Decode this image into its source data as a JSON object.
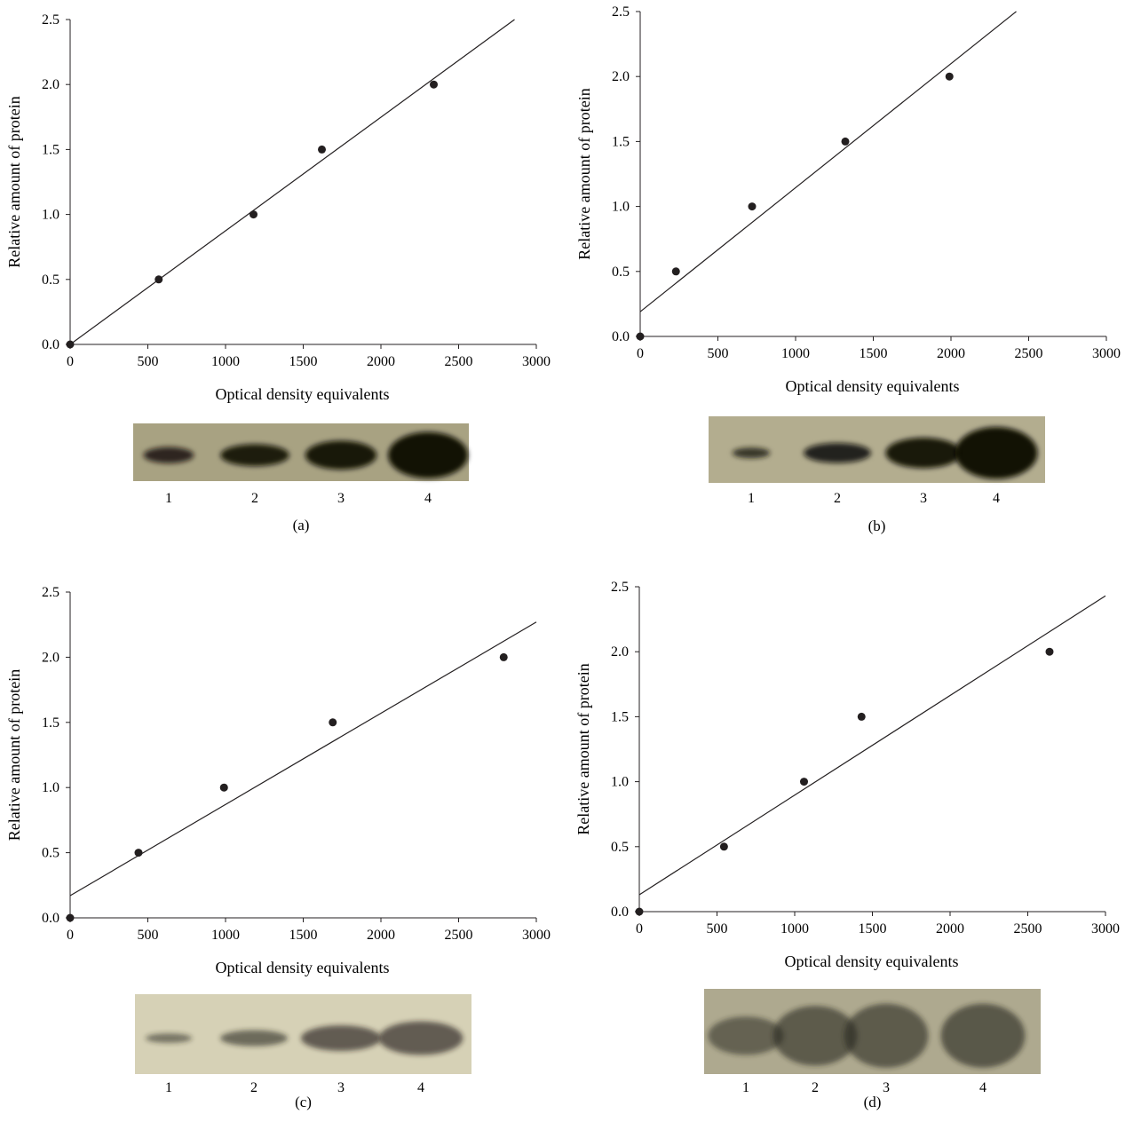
{
  "figure": {
    "lane_labels": [
      "1",
      "2",
      "3",
      "4"
    ]
  },
  "chart_data": [
    {
      "type": "scatter",
      "panel_label": "(a)",
      "xlabel": "Optical density equivalents",
      "ylabel": "Relative amount of protein",
      "xlim": [
        0,
        3000
      ],
      "ylim": [
        0,
        2.5
      ],
      "xticks": [
        "0",
        "500",
        "1000",
        "1500",
        "2000",
        "2500",
        "3000"
      ],
      "yticks": [
        "0.0",
        "0.5",
        "1.0",
        "1.5",
        "2.0",
        "2.5"
      ],
      "points": [
        {
          "x": 0,
          "y": 0
        },
        {
          "x": 570,
          "y": 0.5
        },
        {
          "x": 1180,
          "y": 1.0
        },
        {
          "x": 1620,
          "y": 1.5
        },
        {
          "x": 2340,
          "y": 2.0
        }
      ],
      "fit_line": {
        "x": [
          0,
          2860
        ],
        "y": [
          0,
          2.5
        ]
      },
      "blot": {
        "background": "#a8a282",
        "bands": [
          {
            "lane": 1,
            "width": 0.6,
            "height": 0.28,
            "darkness": 0.85
          },
          {
            "lane": 2,
            "width": 0.82,
            "height": 0.38,
            "darkness": 0.9
          },
          {
            "lane": 3,
            "width": 0.85,
            "height": 0.5,
            "darkness": 0.93
          },
          {
            "lane": 4,
            "width": 0.95,
            "height": 0.8,
            "darkness": 0.97
          }
        ]
      }
    },
    {
      "type": "scatter",
      "panel_label": "(b)",
      "xlabel": "Optical density equivalents",
      "ylabel": "Relative amount of protein",
      "xlim": [
        0,
        3000
      ],
      "ylim": [
        0,
        2.5
      ],
      "xticks": [
        "0",
        "500",
        "1000",
        "1500",
        "2000",
        "2500",
        "3000"
      ],
      "yticks": [
        "0.0",
        "0.5",
        "1.0",
        "1.5",
        "2.0",
        "2.5"
      ],
      "points": [
        {
          "x": 0,
          "y": 0
        },
        {
          "x": 230,
          "y": 0.5
        },
        {
          "x": 720,
          "y": 1.0
        },
        {
          "x": 1320,
          "y": 1.5
        },
        {
          "x": 1990,
          "y": 2.0
        }
      ],
      "fit_line": {
        "x": [
          0,
          2420
        ],
        "y": [
          0.19,
          2.5
        ]
      },
      "blot": {
        "background": "#b3ad8f",
        "bands": [
          {
            "lane": 1,
            "width": 0.45,
            "height": 0.16,
            "darkness": 0.8
          },
          {
            "lane": 2,
            "width": 0.8,
            "height": 0.3,
            "darkness": 0.88
          },
          {
            "lane": 3,
            "width": 0.9,
            "height": 0.46,
            "darkness": 0.93
          },
          {
            "lane": 4,
            "width": 0.98,
            "height": 0.78,
            "darkness": 0.97
          }
        ]
      }
    },
    {
      "type": "scatter",
      "panel_label": "(c)",
      "xlabel": "Optical density equivalents",
      "ylabel": "Relative amount of protein",
      "xlim": [
        0,
        3000
      ],
      "ylim": [
        0,
        2.5
      ],
      "xticks": [
        "0",
        "500",
        "1000",
        "1500",
        "2000",
        "2500",
        "3000"
      ],
      "yticks": [
        "0.0",
        "0.5",
        "1.0",
        "1.5",
        "2.0",
        "2.5"
      ],
      "points": [
        {
          "x": 0,
          "y": 0
        },
        {
          "x": 440,
          "y": 0.5
        },
        {
          "x": 990,
          "y": 1.0
        },
        {
          "x": 1690,
          "y": 1.5
        },
        {
          "x": 2790,
          "y": 2.0
        }
      ],
      "fit_line": {
        "x": [
          0,
          3000
        ],
        "y": [
          0.17,
          2.27
        ]
      },
      "blot": {
        "background": "#d6d1b6",
        "bands": [
          {
            "lane": 1,
            "width": 0.55,
            "height": 0.12,
            "darkness": 0.55
          },
          {
            "lane": 2,
            "width": 0.8,
            "height": 0.2,
            "darkness": 0.6
          },
          {
            "lane": 3,
            "width": 0.95,
            "height": 0.32,
            "darkness": 0.65
          },
          {
            "lane": 4,
            "width": 1.0,
            "height": 0.42,
            "darkness": 0.65
          }
        ]
      }
    },
    {
      "type": "scatter",
      "panel_label": "(d)",
      "xlabel": "Optical density equivalents",
      "ylabel": "Relative amount of protein",
      "xlim": [
        0,
        3000
      ],
      "ylim": [
        0,
        2.5
      ],
      "xticks": [
        "0",
        "500",
        "1000",
        "1500",
        "2000",
        "2500",
        "3000"
      ],
      "yticks": [
        "0.0",
        "0.5",
        "1.0",
        "1.5",
        "2.0",
        "2.5"
      ],
      "points": [
        {
          "x": 0,
          "y": 0
        },
        {
          "x": 545,
          "y": 0.5
        },
        {
          "x": 1060,
          "y": 1.0
        },
        {
          "x": 1430,
          "y": 1.5
        },
        {
          "x": 2640,
          "y": 2.0
        }
      ],
      "fit_line": {
        "x": [
          0,
          3000
        ],
        "y": [
          0.13,
          2.43
        ]
      },
      "blot": {
        "background": "#aea98f",
        "bands": [
          {
            "lane": 1,
            "width": 0.9,
            "height": 0.45,
            "darkness": 0.55
          },
          {
            "lane": 2,
            "width": 1.0,
            "height": 0.7,
            "darkness": 0.6
          },
          {
            "lane": 3,
            "width": 1.0,
            "height": 0.75,
            "darkness": 0.6
          },
          {
            "lane": 4,
            "width": 1.0,
            "height": 0.75,
            "darkness": 0.62
          }
        ]
      }
    }
  ]
}
